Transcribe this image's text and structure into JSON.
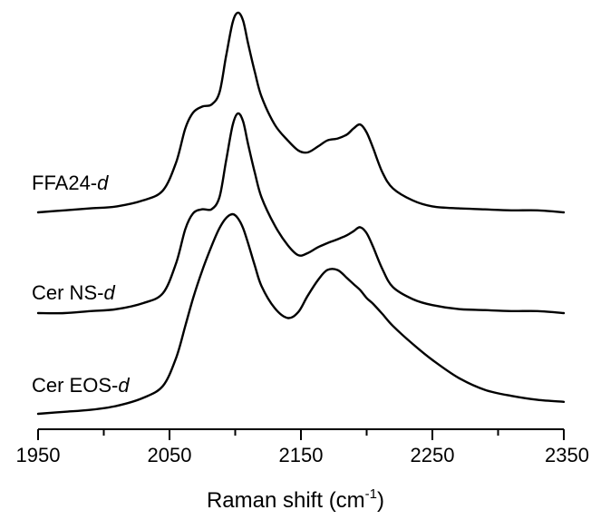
{
  "chart_data": {
    "type": "line",
    "title": "",
    "xlabel": "Raman shift (cm",
    "xlabel_sup": "-1",
    "xlabel_close": ")",
    "ylabel": "",
    "xlim": [
      1950,
      2350
    ],
    "x_ticks": [
      1950,
      2050,
      2150,
      2250,
      2350
    ],
    "grid": false,
    "legend": "none",
    "y_axis_shown": false,
    "line_color": "#000000",
    "x": [
      1950,
      1970,
      1990,
      2010,
      2030,
      2045,
      2055,
      2062,
      2068,
      2075,
      2082,
      2088,
      2093,
      2098,
      2102,
      2106,
      2110,
      2115,
      2120,
      2130,
      2140,
      2148,
      2155,
      2163,
      2170,
      2178,
      2185,
      2190,
      2195,
      2200,
      2205,
      2212,
      2220,
      2235,
      2250,
      2270,
      2290,
      2310,
      2330,
      2350
    ],
    "series": [
      {
        "name": "FFA24-",
        "name_italic": "d",
        "values": [
          0.0,
          0.01,
          0.02,
          0.03,
          0.06,
          0.11,
          0.25,
          0.42,
          0.5,
          0.53,
          0.54,
          0.6,
          0.78,
          0.95,
          1.0,
          0.96,
          0.84,
          0.7,
          0.58,
          0.44,
          0.36,
          0.31,
          0.3,
          0.33,
          0.36,
          0.37,
          0.39,
          0.42,
          0.44,
          0.4,
          0.32,
          0.2,
          0.12,
          0.06,
          0.03,
          0.02,
          0.015,
          0.01,
          0.01,
          0.0
        ]
      },
      {
        "name": "Cer NS-",
        "name_italic": "d",
        "values": [
          0.0,
          0.0,
          0.01,
          0.02,
          0.05,
          0.1,
          0.25,
          0.42,
          0.5,
          0.52,
          0.52,
          0.58,
          0.76,
          0.94,
          1.0,
          0.96,
          0.84,
          0.7,
          0.58,
          0.44,
          0.34,
          0.29,
          0.3,
          0.33,
          0.35,
          0.37,
          0.39,
          0.41,
          0.43,
          0.4,
          0.33,
          0.22,
          0.13,
          0.07,
          0.04,
          0.02,
          0.015,
          0.01,
          0.01,
          0.0
        ]
      },
      {
        "name": "Cer EOS-",
        "name_italic": "d",
        "values": [
          0.0,
          0.01,
          0.02,
          0.04,
          0.08,
          0.14,
          0.28,
          0.44,
          0.58,
          0.72,
          0.84,
          0.93,
          0.98,
          1.0,
          0.98,
          0.93,
          0.85,
          0.74,
          0.64,
          0.53,
          0.48,
          0.51,
          0.59,
          0.67,
          0.72,
          0.72,
          0.68,
          0.65,
          0.62,
          0.58,
          0.55,
          0.5,
          0.44,
          0.35,
          0.27,
          0.18,
          0.12,
          0.09,
          0.07,
          0.06
        ]
      }
    ]
  }
}
